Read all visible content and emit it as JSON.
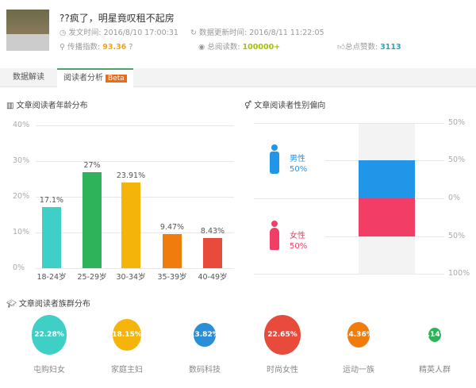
{
  "article": {
    "title": "??疯了，明星竟叹租不起房",
    "post_time": "发文时间: 2016/8/10 17:00:31",
    "update_time": "数据更新时间: 2016/8/11 11:22:05",
    "spread_label": "传播指数:",
    "spread_value": "93.36",
    "read_label": "总阅读数:",
    "read_value": "100000+",
    "like_label": "总点赞数:",
    "like_value": "3113"
  },
  "tabs": [
    {
      "label": "数据解读"
    },
    {
      "label": "阅读者分析",
      "badge": "Beta",
      "active": true
    }
  ],
  "colors": {
    "accent": "#4aa36a",
    "spread": "#f0a51c",
    "read": "#a8c200",
    "like": "#27a6c9",
    "male": "#2196e8",
    "female": "#f23e66"
  },
  "age_section": {
    "title": "文章阅读者年龄分布"
  },
  "gender_section": {
    "title": "文章阅读者性别偏向",
    "male_label": "男性",
    "male_value": "50%",
    "female_label": "女性",
    "female_value": "50%",
    "axis": [
      "50%",
      "50%",
      "0%",
      "50%",
      "100%"
    ]
  },
  "group_section": {
    "title": "文章阅读者族群分布"
  },
  "chart_data": [
    {
      "type": "bar",
      "title": "文章阅读者年龄分布",
      "categories": [
        "18-24岁",
        "25-29岁",
        "30-34岁",
        "35-39岁",
        "40-49岁"
      ],
      "values": [
        17.1,
        27,
        23.91,
        9.47,
        8.43
      ],
      "labels": [
        "17.1%",
        "27%",
        "23.91%",
        "9.47%",
        "8.43%"
      ],
      "colors": [
        "#3ecfc6",
        "#2fb35a",
        "#f5b40a",
        "#f07c0d",
        "#e84a3c"
      ],
      "ylim": [
        0,
        40
      ],
      "yticks": [
        "0%",
        "10%",
        "20%",
        "30%",
        "40%"
      ],
      "grid": true
    },
    {
      "type": "bar",
      "title": "文章阅读者性别偏向",
      "categories": [
        "男性",
        "女性"
      ],
      "values": [
        50,
        50
      ]
    },
    {
      "type": "bubble",
      "title": "文章阅读者族群分布",
      "categories": [
        "屯购妇女",
        "家庭主妇",
        "数码科技",
        "时尚女性",
        "运动一族",
        "精英人群"
      ],
      "values": [
        22.28,
        18.15,
        13.82,
        22.65,
        14.36,
        8.14
      ],
      "labels": [
        "22.28%",
        "18.15%",
        "13.82%",
        "22.65%",
        "14.36%",
        "8.14%"
      ],
      "colors": [
        "#3ecfc6",
        "#f5b40a",
        "#2a8fd6",
        "#e84a3c",
        "#f07c0d",
        "#2fb35a"
      ]
    }
  ]
}
